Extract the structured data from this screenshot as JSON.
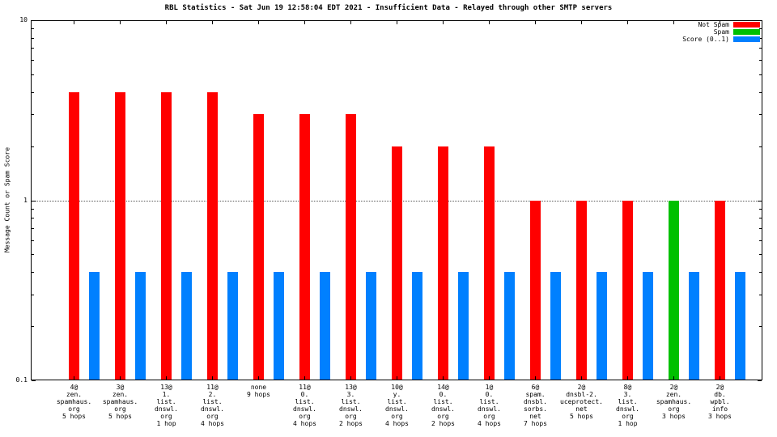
{
  "chart_data": {
    "type": "bar",
    "title": "RBL Statistics - Sat Jun 19 12:58:04 EDT 2021 - Insufficient Data - Relayed through other SMTP servers",
    "ylabel": "Message Count or Spam Score",
    "xlabel": "",
    "yscale": "log",
    "ylim": [
      0.1,
      10
    ],
    "grid": "horizontal-dotted-at-1",
    "legend_position": "top-right",
    "colors": {
      "notspam": "#ff0000",
      "spam": "#00c000",
      "score": "#0080ff"
    },
    "legend": [
      {
        "label": "Not Spam",
        "type": "notspam"
      },
      {
        "label": "Spam",
        "type": "spam"
      },
      {
        "label": "Score (0..1)",
        "type": "score"
      }
    ],
    "yticks": [
      {
        "v": 0.1,
        "label": "0.1"
      },
      {
        "v": 1,
        "label": "1"
      },
      {
        "v": 10,
        "label": "10"
      }
    ],
    "groups": [
      {
        "count": 4,
        "type": "notspam",
        "score": 0.4,
        "label_lines": [
          "4@",
          "zen.",
          "spamhaus.",
          "org",
          "5 hops"
        ]
      },
      {
        "count": 4,
        "type": "notspam",
        "score": 0.4,
        "label_lines": [
          "3@",
          "zen.",
          "spamhaus.",
          "org",
          "5 hops"
        ]
      },
      {
        "count": 4,
        "type": "notspam",
        "score": 0.4,
        "label_lines": [
          "13@",
          "1.",
          "list.",
          "dnswl.",
          "org",
          "1 hop"
        ]
      },
      {
        "count": 4,
        "type": "notspam",
        "score": 0.4,
        "label_lines": [
          "11@",
          "2.",
          "list.",
          "dnswl.",
          "org",
          "4 hops"
        ]
      },
      {
        "count": 3,
        "type": "notspam",
        "score": 0.4,
        "label_lines": [
          "none",
          "9 hops"
        ]
      },
      {
        "count": 3,
        "type": "notspam",
        "score": 0.4,
        "label_lines": [
          "11@",
          "0.",
          "list.",
          "dnswl.",
          "org",
          "4 hops"
        ]
      },
      {
        "count": 3,
        "type": "notspam",
        "score": 0.4,
        "label_lines": [
          "13@",
          "3.",
          "list.",
          "dnswl.",
          "org",
          "2 hops"
        ]
      },
      {
        "count": 2,
        "type": "notspam",
        "score": 0.4,
        "label_lines": [
          "10@",
          "y.",
          "list.",
          "dnswl.",
          "org",
          "4 hops"
        ]
      },
      {
        "count": 2,
        "type": "notspam",
        "score": 0.4,
        "label_lines": [
          "14@",
          "0.",
          "list.",
          "dnswl.",
          "org",
          "2 hops"
        ]
      },
      {
        "count": 2,
        "type": "notspam",
        "score": 0.4,
        "label_lines": [
          "1@",
          "0.",
          "list.",
          "dnswl.",
          "org",
          "4 hops"
        ]
      },
      {
        "count": 1,
        "type": "notspam",
        "score": 0.4,
        "label_lines": [
          "6@",
          "spam.",
          "dnsbl.",
          "sorbs.",
          "net",
          "7 hops"
        ]
      },
      {
        "count": 1,
        "type": "notspam",
        "score": 0.4,
        "label_lines": [
          "2@",
          "dnsbl-2.",
          "uceprotect.",
          "net",
          "5 hops"
        ]
      },
      {
        "count": 1,
        "type": "notspam",
        "score": 0.4,
        "label_lines": [
          "8@",
          "3.",
          "list.",
          "dnswl.",
          "org",
          "1 hop"
        ]
      },
      {
        "count": 1,
        "type": "spam",
        "score": 0.4,
        "label_lines": [
          "2@",
          "zen.",
          "spamhaus.",
          "org",
          "3 hops"
        ]
      },
      {
        "count": 1,
        "type": "notspam",
        "score": 0.4,
        "label_lines": [
          "2@",
          "db.",
          "wpbl.",
          "info",
          "3 hops"
        ]
      }
    ]
  }
}
